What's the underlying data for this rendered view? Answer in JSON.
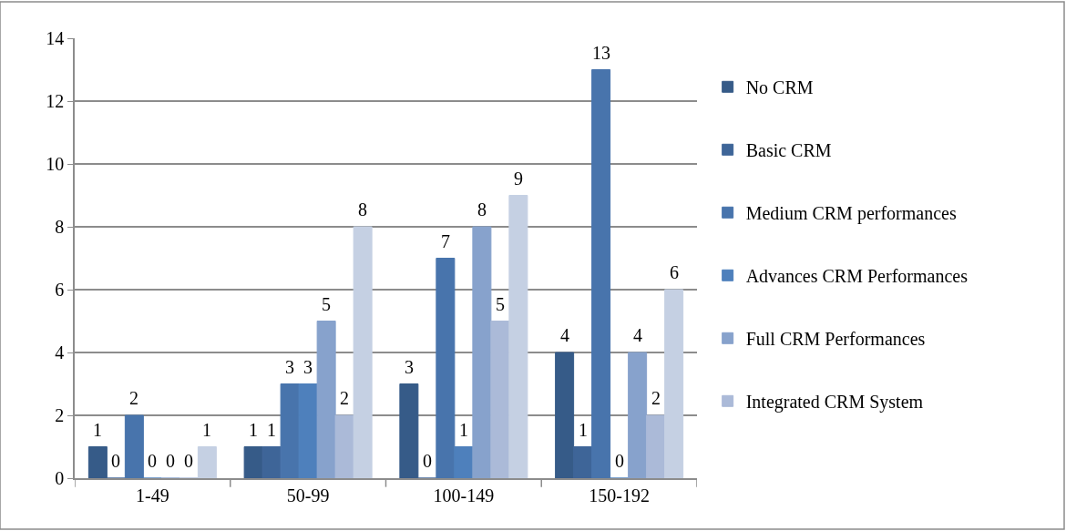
{
  "chart_data": {
    "type": "bar",
    "categories": [
      "1-49",
      "50-99",
      "100-149",
      "150-192"
    ],
    "series": [
      {
        "name": "No CRM",
        "color": "#365b88",
        "values": [
          1,
          1,
          3,
          4
        ]
      },
      {
        "name": "Basic CRM",
        "color": "#3e6598",
        "values": [
          0,
          1,
          0,
          1
        ]
      },
      {
        "name": "Medium CRM performances",
        "color": "#4874ac",
        "values": [
          2,
          3,
          7,
          13
        ]
      },
      {
        "name": "Advances CRM Performances",
        "color": "#4e80bc",
        "values": [
          0,
          3,
          1,
          0
        ]
      },
      {
        "name": "Full CRM Performances",
        "color": "#87a2cc",
        "values": [
          0,
          5,
          8,
          4
        ]
      },
      {
        "name": "Integrated CRM System",
        "color": "#abbad8",
        "values": [
          0,
          2,
          5,
          2
        ]
      },
      {
        "color": "#c5d0e3",
        "values": [
          1,
          8,
          9,
          6
        ]
      }
    ],
    "ylim": [
      0,
      14
    ],
    "yticks": [
      0,
      2,
      4,
      6,
      8,
      10,
      12,
      14
    ],
    "grid": "y",
    "legend": "right",
    "data_labels": true
  }
}
